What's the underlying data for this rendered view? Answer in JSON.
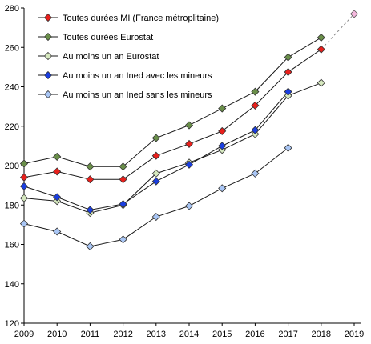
{
  "chart_data": {
    "type": "line",
    "x": [
      2009,
      2010,
      2011,
      2012,
      2013,
      2014,
      2015,
      2016,
      2017,
      2018,
      2019
    ],
    "ylim": [
      120,
      280
    ],
    "yticks": [
      120,
      140,
      160,
      180,
      200,
      220,
      240,
      260,
      280
    ],
    "grid": false,
    "legend_position": "top-left",
    "series": [
      {
        "name": "Toutes durées MI (France métroplitaine)",
        "color": "#e8201c",
        "marker": "diamond",
        "values": [
          194,
          197,
          193,
          193,
          205,
          211,
          217.5,
          230.5,
          247.5,
          259,
          null
        ]
      },
      {
        "name": "Toutes durées Eurostat",
        "color": "#6a8f4a",
        "marker": "diamond",
        "values": [
          201,
          204.5,
          199.5,
          199.5,
          214,
          220.5,
          229,
          237.5,
          255,
          265,
          null
        ]
      },
      {
        "name": "Au moins un an Eurostat",
        "color": "#d6e8bf",
        "marker": "diamond",
        "values": [
          183.5,
          182,
          176,
          180,
          196,
          201.5,
          208,
          216,
          235.5,
          242,
          null
        ]
      },
      {
        "name": "Au moins un an Ined avec les mineurs",
        "color": "#1a3ee0",
        "marker": "diamond",
        "values": [
          189.5,
          184,
          177.5,
          180.5,
          192,
          200.5,
          210,
          218,
          237.5,
          null,
          null
        ]
      },
      {
        "name": "Au moins un an Ined sans les mineurs",
        "color": "#a9c6f5",
        "marker": "diamond",
        "values": [
          170.5,
          166.5,
          159,
          162.5,
          174,
          179.5,
          188.5,
          196,
          209,
          null,
          null
        ]
      }
    ],
    "projection": {
      "from_x": 2018,
      "from_y": 259,
      "x": 2019,
      "y": 277,
      "color": "#f5b8de"
    }
  }
}
